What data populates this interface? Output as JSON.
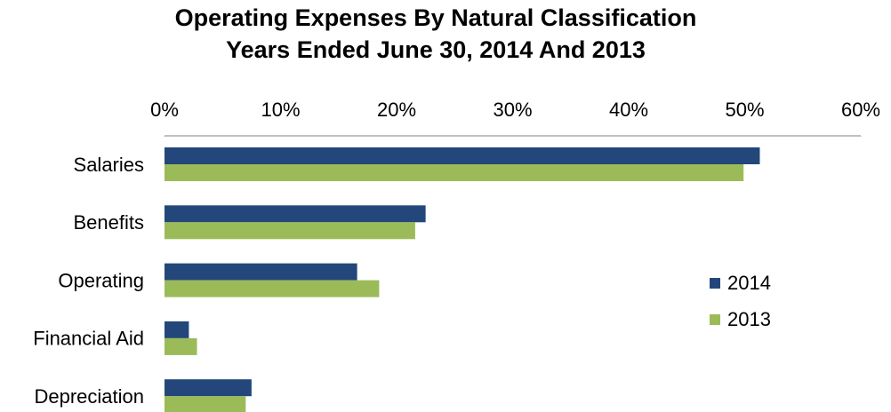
{
  "chart_data": {
    "type": "barh",
    "title": "Operating Expenses By Natural Classification",
    "subtitle": "Years Ended June 30, 2014 And 2013",
    "categories": [
      "Salaries",
      "Benefits",
      "Operating",
      "Financial Aid",
      "Depreciation"
    ],
    "series": [
      {
        "name": "2014",
        "color": "#23477a",
        "values": [
          51.3,
          22.5,
          16.6,
          2.1,
          7.5
        ]
      },
      {
        "name": "2013",
        "color": "#9bbb59",
        "values": [
          49.9,
          21.6,
          18.5,
          2.8,
          7.0
        ]
      }
    ],
    "xlim": [
      0,
      60
    ],
    "xticks": [
      {
        "value": 0,
        "label": "0%"
      },
      {
        "value": 10,
        "label": "10%"
      },
      {
        "value": 20,
        "label": "20%"
      },
      {
        "value": 30,
        "label": "30%"
      },
      {
        "value": 40,
        "label": "40%"
      },
      {
        "value": 50,
        "label": "50%"
      },
      {
        "value": 60,
        "label": "60%"
      }
    ],
    "grid": false,
    "legend": "right"
  }
}
